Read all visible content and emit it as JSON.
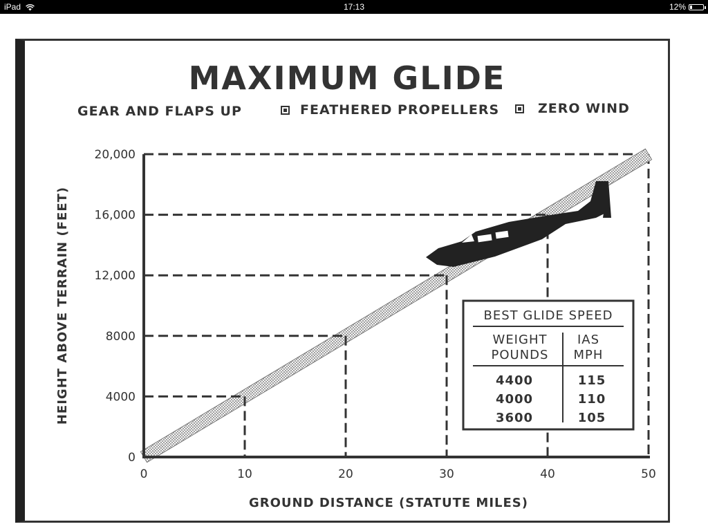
{
  "status_bar": {
    "device": "iPad",
    "time": "17:13",
    "battery": "12%"
  },
  "chart_data": {
    "type": "line",
    "title": "MAXIMUM GLIDE",
    "subtitle": [
      "GEAR AND FLAPS UP",
      "FEATHERED PROPELLERS",
      "ZERO WIND"
    ],
    "xlabel": "GROUND DISTANCE (STATUTE MILES)",
    "ylabel": "HEIGHT ABOVE TERRAIN (FEET)",
    "xlim": [
      0,
      50
    ],
    "ylim": [
      0,
      20000
    ],
    "x_ticks": [
      0,
      10,
      20,
      30,
      40,
      50
    ],
    "x_tick_labels": [
      "0",
      "10",
      "20",
      "30",
      "40",
      "50"
    ],
    "y_ticks": [
      0,
      4000,
      8000,
      12000,
      16000,
      20000
    ],
    "y_tick_labels": [
      "0",
      "4000",
      "8000",
      "12,000",
      "16,000",
      "20,000"
    ],
    "series": [
      {
        "x": [
          0,
          50
        ],
        "y": [
          0,
          20000
        ]
      }
    ],
    "reference_points": [
      {
        "x": 10,
        "y": 4000
      },
      {
        "x": 20,
        "y": 8000
      },
      {
        "x": 30,
        "y": 12000
      },
      {
        "x": 40,
        "y": 16000
      },
      {
        "x": 50,
        "y": 20000
      }
    ],
    "table": {
      "title": "BEST GLIDE SPEED",
      "headers": [
        [
          "WEIGHT",
          "POUNDS"
        ],
        [
          "IAS",
          "MPH"
        ]
      ],
      "rows": [
        [
          "4400",
          "115"
        ],
        [
          "4000",
          "110"
        ],
        [
          "3600",
          "105"
        ]
      ]
    },
    "illustration": "aircraft-silhouette-icon"
  }
}
